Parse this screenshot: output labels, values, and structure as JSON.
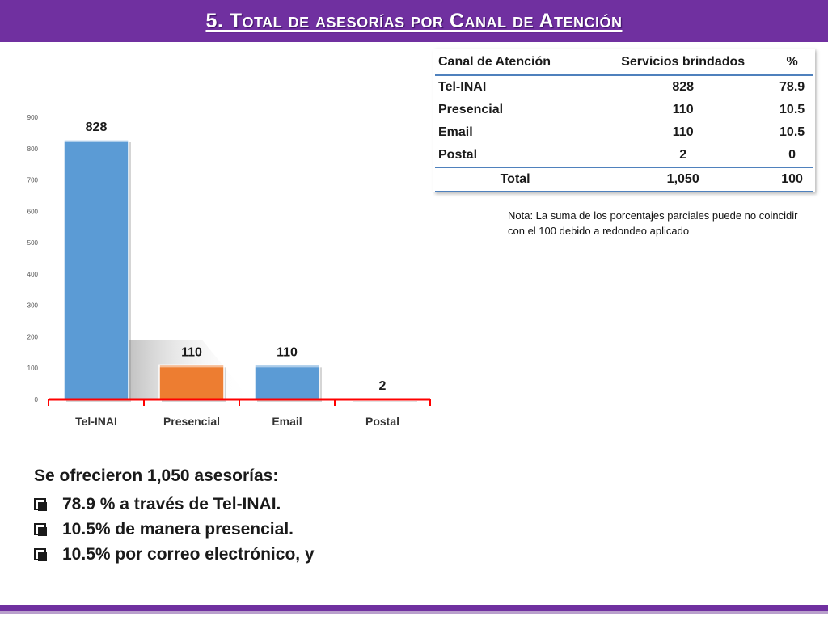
{
  "page": {
    "title": "5. Total de asesorías por Canal de Atención"
  },
  "table": {
    "headers": [
      "Canal de Atención",
      "Servicios brindados",
      "%"
    ],
    "rows": [
      [
        "Tel-INAI",
        "828",
        "78.9"
      ],
      [
        "Presencial",
        "110",
        "10.5"
      ],
      [
        "Email",
        "110",
        "10.5"
      ],
      [
        "Postal",
        "2",
        "0"
      ]
    ],
    "total": [
      "Total",
      "1,050",
      "100"
    ]
  },
  "note": "Nota: La suma de los porcentajes parciales puede no coincidir con el 100 debido a redondeo aplicado",
  "summary": {
    "headline": "Se ofrecieron 1,050 asesorías:",
    "bullets": [
      "78.9 % a través de Tel-INAI.",
      "10.5% de manera presencial.",
      "10.5% por correo electrónico, y"
    ]
  },
  "chart_data": {
    "type": "bar",
    "categories": [
      "Tel-INAI",
      "Presencial",
      "Email",
      "Postal"
    ],
    "values": [
      828,
      110,
      110,
      2
    ],
    "data_labels": [
      "828",
      "110",
      "110",
      "2"
    ],
    "colors": [
      "#5b9bd5",
      "#ed7d31",
      "#5b9bd5",
      "#5b9bd5"
    ],
    "ylim": [
      0,
      900
    ],
    "yticks": [
      0,
      100,
      200,
      300,
      400,
      500,
      600,
      700,
      800,
      900
    ],
    "title": "",
    "xlabel": "",
    "ylabel": "",
    "axis_color": "#ff0000",
    "grid": false,
    "legend": false
  }
}
